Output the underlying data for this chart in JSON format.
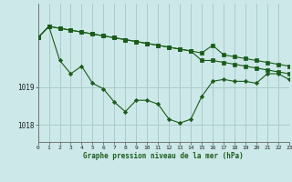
{
  "xlabel": "Graphe pression niveau de la mer (hPa)",
  "background_color": "#cce8e8",
  "grid_color": "#aacccc",
  "line_color": "#1a5c1a",
  "hours": [
    0,
    1,
    2,
    3,
    4,
    5,
    6,
    7,
    8,
    9,
    10,
    11,
    12,
    13,
    14,
    15,
    16,
    17,
    18,
    19,
    20,
    21,
    22,
    23
  ],
  "line1": [
    1020.3,
    1020.6,
    1020.55,
    1020.5,
    1020.45,
    1020.4,
    1020.35,
    1020.3,
    1020.25,
    1020.2,
    1020.15,
    1020.1,
    1020.05,
    1020.0,
    1019.95,
    1019.9,
    1020.1,
    1019.85,
    1019.8,
    1019.75,
    1019.7,
    1019.65,
    1019.6,
    1019.55
  ],
  "line2": [
    1020.3,
    1020.6,
    1020.55,
    1020.5,
    1020.45,
    1020.4,
    1020.35,
    1020.3,
    1020.25,
    1020.2,
    1020.15,
    1020.1,
    1020.05,
    1020.0,
    1019.95,
    1019.7,
    1019.7,
    1019.65,
    1019.6,
    1019.55,
    1019.5,
    1019.45,
    1019.4,
    1019.35
  ],
  "line3": [
    1020.3,
    1020.6,
    1019.7,
    1019.35,
    1019.55,
    1019.1,
    1018.95,
    1018.6,
    1018.35,
    1018.65,
    1018.65,
    1018.55,
    1018.15,
    1018.05,
    1018.15,
    1018.75,
    1019.15,
    1019.2,
    1019.15,
    1019.15,
    1019.1,
    1019.35,
    1019.35,
    1019.2
  ],
  "ylim_min": 1017.55,
  "ylim_max": 1021.2,
  "ytick_values": [
    1018,
    1019
  ],
  "xlim_min": 0,
  "xlim_max": 23
}
